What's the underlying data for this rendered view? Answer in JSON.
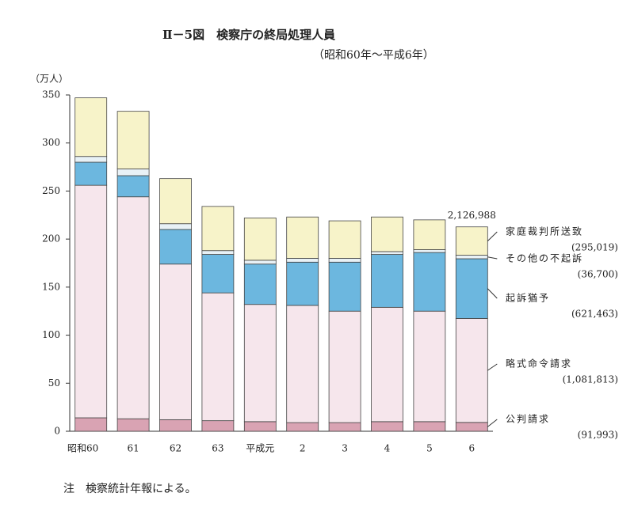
{
  "chart_data": {
    "type": "stacked_bar",
    "title": "Ⅱ－5図　検察庁の終局処理人員",
    "subtitle": "（昭和60年～平成6年）",
    "y_unit": "（万人）",
    "note": "注　検察統計年報による。",
    "categories": [
      "昭和60",
      "61",
      "62",
      "63",
      "平成元",
      "2",
      "3",
      "4",
      "5",
      "6"
    ],
    "series": [
      {
        "name": "公判請求",
        "color": "#d9a3b3",
        "values": [
          14,
          13,
          12,
          11,
          10,
          9,
          9,
          10,
          10,
          9.1993
        ],
        "value_labels": [
          null,
          null,
          null,
          null,
          null,
          null,
          null,
          null,
          null,
          "(91,993)"
        ]
      },
      {
        "name": "略式命令請求",
        "color": "#f6e6ec",
        "values": [
          242,
          231,
          162,
          133,
          122,
          122,
          116,
          119,
          115,
          108.1813
        ],
        "value_labels": [
          null,
          null,
          null,
          null,
          null,
          null,
          null,
          null,
          null,
          "(1,081,813)"
        ]
      },
      {
        "name": "起訴猶予",
        "color": "#6cb7df",
        "values": [
          24,
          22,
          36,
          40,
          42,
          45,
          51,
          55,
          61,
          62.1463
        ],
        "value_labels": [
          null,
          null,
          null,
          null,
          null,
          null,
          null,
          null,
          null,
          "(621,463)"
        ]
      },
      {
        "name": "その他の不起訴",
        "color": "#e8f1f6",
        "values": [
          6,
          7,
          6,
          4,
          4,
          4,
          4,
          3,
          3,
          3.67
        ],
        "value_labels": [
          null,
          null,
          null,
          null,
          null,
          null,
          null,
          null,
          null,
          "(36,700)"
        ]
      },
      {
        "name": "家庭裁判所送致",
        "color": "#f7f3c9",
        "values": [
          61,
          60,
          47,
          46,
          44,
          43,
          39,
          36,
          31,
          29.5019
        ],
        "value_labels": [
          null,
          null,
          null,
          null,
          null,
          null,
          null,
          null,
          null,
          "(295,019)"
        ]
      }
    ],
    "total_label": "2,126,988",
    "ylim": [
      0,
      350
    ],
    "yticks": [
      0,
      50,
      100,
      150,
      200,
      250,
      300,
      350
    ]
  }
}
